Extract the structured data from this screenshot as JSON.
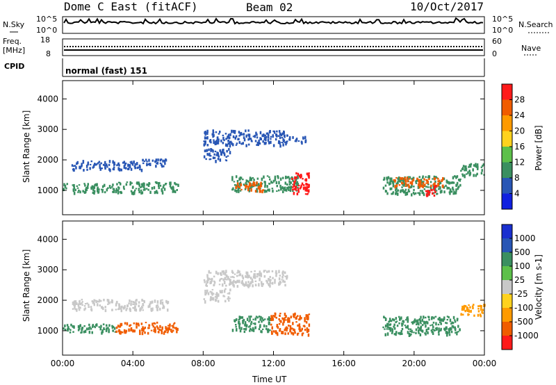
{
  "header": {
    "title": "Dome C East (fitACF)",
    "beam": "Beam 02",
    "date": "10/Oct/2017"
  },
  "aux": {
    "nsky_label": "N.Sky",
    "nsky_ticks": [
      "10^5",
      "10^0"
    ],
    "nsearch_label": "N.Search",
    "nsearch_ticks": [
      "10^5",
      "10^0"
    ],
    "freq_label": "Freq.",
    "freq_unit": "[MHz]",
    "freq_ticks": [
      "18",
      "8"
    ],
    "nave_label": "Nave",
    "nave_ticks": [
      "60",
      "0"
    ],
    "cpid_label": "CPID",
    "cpid_value": "normal (fast) 151"
  },
  "chart_data": [
    {
      "type": "heatmap",
      "name": "power",
      "xlabel": "",
      "ylabel": "Slant Range [km]",
      "ylim": [
        200,
        4600
      ],
      "yticks": [
        "4000",
        "3000",
        "2000",
        "1000"
      ],
      "xlim": [
        0,
        24
      ],
      "colorbar": {
        "label": "Power [dB]",
        "ticks": [
          "28",
          "24",
          "20",
          "16",
          "12",
          "8",
          "4"
        ],
        "colors": [
          "#ff1a1a",
          "#f05c00",
          "#ff9a00",
          "#ffd21e",
          "#5dc04a",
          "#3a8f60",
          "#2856b5",
          "#1020e0"
        ]
      },
      "regions": [
        {
          "t": [
            0.5,
            4.5
          ],
          "r": [
            1700,
            2000
          ],
          "color": "#2856b5"
        },
        {
          "t": [
            4.5,
            6.0
          ],
          "r": [
            1800,
            2050
          ],
          "color": "#2856b5"
        },
        {
          "t": [
            0,
            3.0
          ],
          "r": [
            950,
            1250
          ],
          "color": "#3a8f60"
        },
        {
          "t": [
            3.0,
            6.6
          ],
          "r": [
            950,
            1300
          ],
          "color": "#3a8f60"
        },
        {
          "t": [
            8.0,
            12.8
          ],
          "r": [
            2500,
            3000
          ],
          "color": "#2856b5"
        },
        {
          "t": [
            8.0,
            9.5
          ],
          "r": [
            2000,
            2400
          ],
          "color": "#2856b5"
        },
        {
          "t": [
            12.8,
            13.8
          ],
          "r": [
            2600,
            2800
          ],
          "color": "#2856b5"
        },
        {
          "t": [
            9.6,
            13.4
          ],
          "r": [
            1000,
            1500
          ],
          "color": "#3a8f60"
        },
        {
          "t": [
            9.8,
            11.4
          ],
          "r": [
            1000,
            1300
          ],
          "color": "#f05c00"
        },
        {
          "t": [
            13.0,
            14.0
          ],
          "r": [
            900,
            1600
          ],
          "color": "#ff1a1a"
        },
        {
          "t": [
            18.2,
            22.6
          ],
          "r": [
            900,
            1500
          ],
          "color": "#3a8f60"
        },
        {
          "t": [
            18.8,
            21.6
          ],
          "r": [
            1150,
            1450
          ],
          "color": "#f05c00"
        },
        {
          "t": [
            20.6,
            21.2
          ],
          "r": [
            850,
            1200
          ],
          "color": "#ff1a1a"
        },
        {
          "t": [
            22.6,
            24.0
          ],
          "r": [
            1500,
            1900
          ],
          "color": "#3a8f60"
        }
      ]
    },
    {
      "type": "heatmap",
      "name": "velocity",
      "xlabel": "Time UT",
      "ylabel": "Slant Range [km]",
      "ylim": [
        200,
        4600
      ],
      "yticks": [
        "4000",
        "3000",
        "2000",
        "1000"
      ],
      "xlim": [
        0,
        24
      ],
      "xticks": [
        "00:00",
        "04:00",
        "08:00",
        "12:00",
        "16:00",
        "20:00",
        "00:00"
      ],
      "colorbar": {
        "label": "Velocity [m s-1]",
        "ticks": [
          "1000",
          "500",
          "100",
          "25",
          "-25",
          "-100",
          "-500",
          "-1000"
        ],
        "colors": [
          "#1a30d0",
          "#2856b5",
          "#3a8f60",
          "#5dc04a",
          "#c8c8c8",
          "#ffd21e",
          "#ff9a00",
          "#f05c00",
          "#ff1a1a"
        ]
      },
      "regions": [
        {
          "t": [
            0.5,
            6.0
          ],
          "r": [
            1700,
            2050
          ],
          "color": "#c8c8c8"
        },
        {
          "t": [
            0,
            3.0
          ],
          "r": [
            950,
            1250
          ],
          "color": "#3a8f60"
        },
        {
          "t": [
            3.0,
            6.6
          ],
          "r": [
            950,
            1300
          ],
          "color": "#f05c00"
        },
        {
          "t": [
            8.0,
            12.8
          ],
          "r": [
            2500,
            3000
          ],
          "color": "#c8c8c8"
        },
        {
          "t": [
            8.0,
            9.5
          ],
          "r": [
            2000,
            2400
          ],
          "color": "#c8c8c8"
        },
        {
          "t": [
            9.6,
            11.8
          ],
          "r": [
            1000,
            1500
          ],
          "color": "#3a8f60"
        },
        {
          "t": [
            11.8,
            14.0
          ],
          "r": [
            900,
            1600
          ],
          "color": "#f05c00"
        },
        {
          "t": [
            18.2,
            22.6
          ],
          "r": [
            900,
            1500
          ],
          "color": "#3a8f60"
        },
        {
          "t": [
            22.6,
            24.0
          ],
          "r": [
            1500,
            1900
          ],
          "color": "#ff9a00"
        }
      ]
    }
  ]
}
